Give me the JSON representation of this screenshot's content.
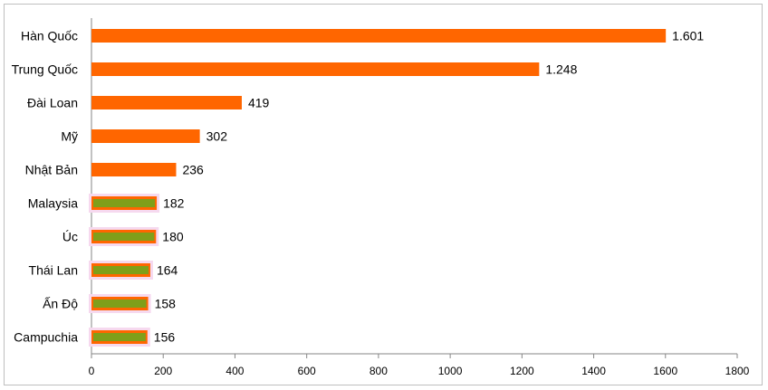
{
  "chart_data": {
    "type": "bar",
    "orientation": "horizontal",
    "categories": [
      "Hàn Quốc",
      "Trung Quốc",
      "Đài Loan",
      "Mỹ",
      "Nhật Bản",
      "Malaysia",
      "Úc",
      "Thái Lan",
      "Ấn Độ",
      "Campuchia"
    ],
    "values": [
      1601,
      1248,
      419,
      302,
      236,
      182,
      180,
      164,
      158,
      156
    ],
    "value_labels": [
      "1.601",
      "1.248",
      "419",
      "302",
      "236",
      "182",
      "180",
      "164",
      "158",
      "156"
    ],
    "highlighted": [
      false,
      false,
      false,
      false,
      false,
      true,
      true,
      true,
      true,
      true
    ],
    "xlim": [
      0,
      1800
    ],
    "xticks": [
      0,
      200,
      400,
      600,
      800,
      1000,
      1200,
      1400,
      1600,
      1800
    ],
    "grid": false,
    "colors": {
      "bar": "#ff6600",
      "highlight_inner": "#7f9f1a",
      "highlight_glow": "#f6d9ef",
      "axis": "#868686"
    }
  }
}
